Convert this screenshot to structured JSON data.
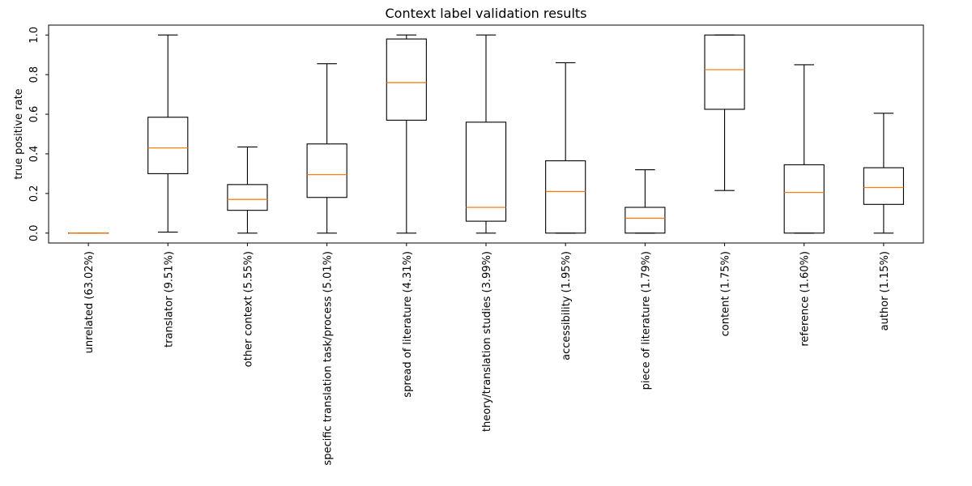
{
  "chart_data": {
    "type": "box",
    "title": "Context label validation results",
    "xlabel": "",
    "ylabel": "true positive rate",
    "ylim": [
      -0.05,
      1.05
    ],
    "yticks": [
      0.0,
      0.2,
      0.4,
      0.6,
      0.8,
      1.0
    ],
    "ytick_labels": [
      "0.0",
      "0.2",
      "0.4",
      "0.6",
      "0.8",
      "1.0"
    ],
    "grid": false,
    "categories": [
      "unrelated (63.02%)",
      "translator (9.51%)",
      "other context (5.55%)",
      "specific translation task/process (5.01%)",
      "spread of literature (4.31%)",
      "theory/translation studies (3.99%)",
      "accessibility (1.95%)",
      "piece of literature (1.79%)",
      "content (1.75%)",
      "reference (1.60%)",
      "author (1.15%)"
    ],
    "boxes": [
      {
        "whislo": 0.0,
        "q1": 0.0,
        "med": 0.0,
        "q3": 0.0,
        "whishi": 0.0
      },
      {
        "whislo": 0.005,
        "q1": 0.3,
        "med": 0.43,
        "q3": 0.585,
        "whishi": 1.0
      },
      {
        "whislo": 0.0,
        "q1": 0.115,
        "med": 0.17,
        "q3": 0.245,
        "whishi": 0.435
      },
      {
        "whislo": 0.0,
        "q1": 0.18,
        "med": 0.295,
        "q3": 0.45,
        "whishi": 0.855
      },
      {
        "whislo": 0.0,
        "q1": 0.57,
        "med": 0.76,
        "q3": 0.98,
        "whishi": 1.0
      },
      {
        "whislo": 0.0,
        "q1": 0.06,
        "med": 0.13,
        "q3": 0.56,
        "whishi": 1.0
      },
      {
        "whislo": 0.0,
        "q1": 0.0,
        "med": 0.21,
        "q3": 0.365,
        "whishi": 0.86
      },
      {
        "whislo": 0.0,
        "q1": 0.0,
        "med": 0.075,
        "q3": 0.13,
        "whishi": 0.32
      },
      {
        "whislo": 0.215,
        "q1": 0.625,
        "med": 0.825,
        "q3": 1.0,
        "whishi": 1.0
      },
      {
        "whislo": 0.0,
        "q1": 0.0,
        "med": 0.205,
        "q3": 0.345,
        "whishi": 0.85
      },
      {
        "whislo": 0.0,
        "q1": 0.145,
        "med": 0.23,
        "q3": 0.33,
        "whishi": 0.605
      }
    ],
    "colors": {
      "box": "#000000",
      "median": "#ff7f0e",
      "axes": "#000000",
      "background": "#ffffff"
    }
  }
}
